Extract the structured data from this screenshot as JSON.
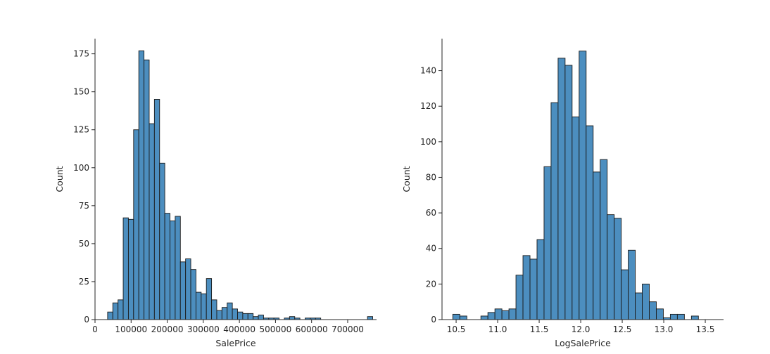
{
  "chart_data": [
    {
      "type": "bar",
      "xlabel": "SalePrice",
      "ylabel": "Count",
      "xlim": [
        0,
        780000
      ],
      "ylim": [
        0,
        185
      ],
      "xticks": [
        {
          "value": 0,
          "label": "0"
        },
        {
          "value": 100000,
          "label": "100000"
        },
        {
          "value": 200000,
          "label": "200000"
        },
        {
          "value": 300000,
          "label": "300000"
        },
        {
          "value": 400000,
          "label": "400000"
        },
        {
          "value": 500000,
          "label": "500000"
        },
        {
          "value": 600000,
          "label": "600000"
        },
        {
          "value": 700000,
          "label": "700000"
        }
      ],
      "yticks": [
        {
          "value": 0,
          "label": "0"
        },
        {
          "value": 25,
          "label": "25"
        },
        {
          "value": 50,
          "label": "50"
        },
        {
          "value": 75,
          "label": "75"
        },
        {
          "value": 100,
          "label": "100"
        },
        {
          "value": 125,
          "label": "125"
        },
        {
          "value": 150,
          "label": "150"
        },
        {
          "value": 175,
          "label": "175"
        }
      ],
      "bins": {
        "start": 34900,
        "width": 14400
      },
      "values": [
        5,
        11,
        13,
        67,
        66,
        125,
        177,
        171,
        129,
        145,
        103,
        70,
        65,
        68,
        38,
        40,
        33,
        18,
        17,
        27,
        13,
        6,
        8,
        11,
        7,
        5,
        4,
        4,
        2,
        3,
        1,
        1,
        1,
        0,
        1,
        2,
        1,
        0,
        1,
        1,
        1,
        0,
        0,
        0,
        0,
        0,
        0,
        0,
        0,
        0,
        2
      ]
    },
    {
      "type": "bar",
      "xlabel": "LogSalePrice",
      "ylabel": "Count",
      "xlim": [
        10.33,
        13.72
      ],
      "ylim": [
        0,
        158
      ],
      "xticks": [
        {
          "value": 10.5,
          "label": "10.5"
        },
        {
          "value": 11.0,
          "label": "11.0"
        },
        {
          "value": 11.5,
          "label": "11.5"
        },
        {
          "value": 12.0,
          "label": "12.0"
        },
        {
          "value": 12.5,
          "label": "12.5"
        },
        {
          "value": 13.0,
          "label": "13.0"
        },
        {
          "value": 13.5,
          "label": "13.5"
        }
      ],
      "yticks": [
        {
          "value": 0,
          "label": "0"
        },
        {
          "value": 20,
          "label": "20"
        },
        {
          "value": 40,
          "label": "40"
        },
        {
          "value": 60,
          "label": "60"
        },
        {
          "value": 80,
          "label": "80"
        },
        {
          "value": 100,
          "label": "100"
        },
        {
          "value": 120,
          "label": "120"
        },
        {
          "value": 140,
          "label": "140"
        }
      ],
      "bins": {
        "start": 10.46,
        "width": 0.0845
      },
      "values": [
        3,
        2,
        0,
        0,
        2,
        4,
        6,
        5,
        6,
        25,
        36,
        34,
        45,
        86,
        122,
        147,
        143,
        114,
        151,
        109,
        83,
        90,
        59,
        57,
        28,
        39,
        15,
        20,
        10,
        6,
        1,
        3,
        3,
        0,
        2
      ]
    }
  ],
  "colors": {
    "bar_fill": "#4c8ebf",
    "bar_edge": "#1a1a1a",
    "axis": "#262626",
    "text": "#262626"
  }
}
